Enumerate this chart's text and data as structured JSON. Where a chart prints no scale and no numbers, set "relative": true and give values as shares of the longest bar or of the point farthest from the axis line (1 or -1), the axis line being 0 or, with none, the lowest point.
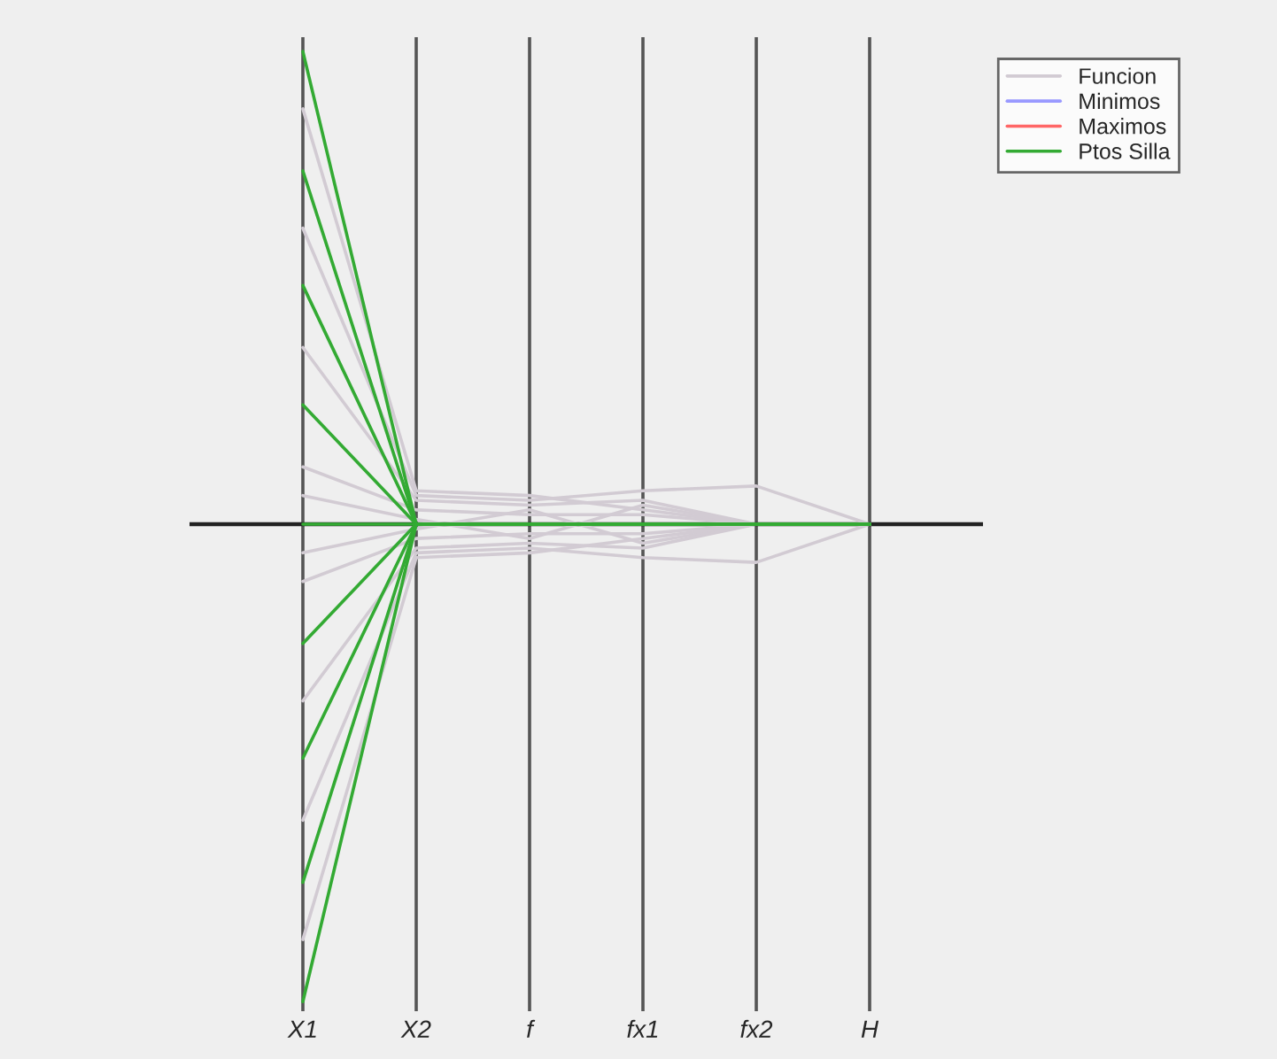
{
  "chart_data": {
    "type": "line",
    "relative": true,
    "categories": [
      "X1",
      "X2",
      "f",
      "fx1",
      "fx2",
      "H"
    ],
    "legend": "top right",
    "grid": "x",
    "marker": "none",
    "line_style": "solid",
    "series": [
      {
        "name": "Funcion",
        "color": "#d2cbd3",
        "values": [
          0.87,
          0.07,
          0.06,
          0.03,
          0,
          0
        ]
      },
      {
        "color": "#d2cbd3",
        "values": [
          0.62,
          0.06,
          0.05,
          0.07,
          0.08,
          0
        ]
      },
      {
        "color": "#d2cbd3",
        "values": [
          0.37,
          0.05,
          0.04,
          0.05,
          0,
          0
        ]
      },
      {
        "color": "#d2cbd3",
        "values": [
          0.12,
          0.03,
          0.02,
          0.02,
          0,
          0
        ]
      },
      {
        "color": "#d2cbd3",
        "values": [
          0.06,
          0.01,
          -0.03,
          0.04,
          0,
          0
        ]
      },
      {
        "color": "#d2cbd3",
        "values": [
          -0.06,
          -0.01,
          0.03,
          -0.04,
          0,
          0
        ]
      },
      {
        "color": "#d2cbd3",
        "values": [
          -0.12,
          -0.03,
          -0.02,
          -0.02,
          0,
          0
        ]
      },
      {
        "color": "#d2cbd3",
        "values": [
          -0.37,
          -0.05,
          -0.04,
          -0.05,
          0,
          0
        ]
      },
      {
        "color": "#d2cbd3",
        "values": [
          -0.62,
          -0.06,
          -0.05,
          -0.07,
          -0.08,
          0
        ]
      },
      {
        "color": "#d2cbd3",
        "values": [
          -0.87,
          -0.07,
          -0.06,
          -0.03,
          0,
          0
        ]
      },
      {
        "name": "Minimos",
        "color": "#9999ff",
        "values": [
          null,
          null,
          null,
          null,
          null,
          null
        ]
      },
      {
        "name": "Maximos",
        "color": "#ff6666",
        "values": [
          null,
          null,
          null,
          null,
          null,
          null
        ]
      },
      {
        "name": "Ptos Silla",
        "color": "#33aa33",
        "values": [
          0.99,
          0,
          0,
          0,
          0,
          0
        ]
      },
      {
        "color": "#33aa33",
        "values": [
          0.74,
          0,
          0,
          0,
          0,
          0
        ]
      },
      {
        "color": "#33aa33",
        "values": [
          0.5,
          0,
          0,
          0,
          0,
          0
        ]
      },
      {
        "color": "#33aa33",
        "values": [
          0.25,
          0,
          0,
          0,
          0,
          0
        ]
      },
      {
        "color": "#33aa33",
        "values": [
          0,
          0,
          0,
          0,
          0,
          0
        ]
      },
      {
        "color": "#33aa33",
        "values": [
          -0.25,
          0,
          0,
          0,
          0,
          0
        ]
      },
      {
        "color": "#33aa33",
        "values": [
          -0.49,
          0,
          0,
          0,
          0,
          0
        ]
      },
      {
        "color": "#33aa33",
        "values": [
          -0.75,
          0,
          0,
          0,
          0,
          0
        ]
      },
      {
        "color": "#33aa33",
        "values": [
          -1,
          0,
          0,
          0,
          0,
          0
        ]
      }
    ]
  }
}
